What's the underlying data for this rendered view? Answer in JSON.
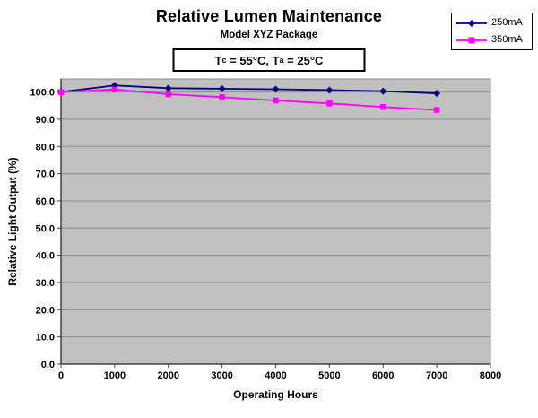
{
  "condition": {
    "t1": "T",
    "t1_sub": "c",
    "mid": " = 55°C, T",
    "t2_sub": "a",
    "end": " = 25°C"
  },
  "legend": {
    "items": [
      {
        "label": "250mA",
        "color": "#000080",
        "marker": "diamond"
      },
      {
        "label": "350mA",
        "color": "#ff00ff",
        "marker": "square"
      }
    ]
  },
  "chart_data": {
    "type": "line",
    "title": "Relative Lumen Maintenance",
    "subtitle": "Model XYZ Package",
    "annotation": "Tc = 55°C, Ta = 25°C",
    "xlabel": "Operating Hours",
    "ylabel": "Relative Light Output (%)",
    "xlim": [
      0,
      8000
    ],
    "ylim": [
      0,
      104.8
    ],
    "grid": true,
    "legend_position": "top-right",
    "plot_bg": "#c0c0c0",
    "grid_color": "#8c8c8c",
    "axis_color": "#404040",
    "x": [
      0,
      1000,
      2000,
      3000,
      4000,
      5000,
      6000,
      7000
    ],
    "series": [
      {
        "name": "250mA",
        "color": "#000080",
        "marker": "diamond",
        "values": [
          100.0,
          102.4,
          101.4,
          101.2,
          101.0,
          100.7,
          100.3,
          99.5
        ]
      },
      {
        "name": "350mA",
        "color": "#ff00ff",
        "marker": "square",
        "values": [
          100.0,
          100.9,
          99.2,
          98.1,
          96.9,
          95.8,
          94.5,
          93.4
        ]
      }
    ],
    "x_ticks": {
      "values": [
        0,
        1000,
        2000,
        3000,
        4000,
        5000,
        6000,
        7000,
        8000
      ],
      "labels": [
        "0",
        "1000",
        "2000",
        "3000",
        "4000",
        "5000",
        "6000",
        "7000",
        "8000"
      ]
    },
    "y_ticks": {
      "values": [
        0,
        10,
        20,
        30,
        40,
        50,
        60,
        70,
        80,
        90,
        100
      ],
      "labels": [
        "0.0",
        "10.0",
        "20.0",
        "30.0",
        "40.0",
        "50.0",
        "60.0",
        "70.0",
        "80.0",
        "90.0",
        "100.0"
      ]
    }
  }
}
